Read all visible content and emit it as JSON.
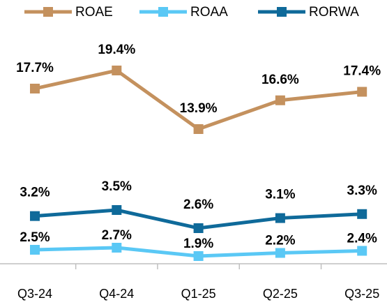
{
  "chart_data": {
    "type": "line",
    "categories": [
      "Q3-24",
      "Q4-24",
      "Q1-25",
      "Q2-25",
      "Q3-25"
    ],
    "series": [
      {
        "name": "ROAE",
        "color": "#c4915e",
        "values": [
          17.7,
          19.4,
          13.9,
          16.6,
          17.4
        ],
        "value_labels": [
          "17.7%",
          "19.4%",
          "13.9%",
          "16.6%",
          "17.4%"
        ]
      },
      {
        "name": "ROAA",
        "color": "#5ac8f5",
        "values": [
          2.5,
          2.7,
          1.9,
          2.2,
          2.4
        ],
        "value_labels": [
          "2.5%",
          "2.7%",
          "1.9%",
          "2.2%",
          "2.4%"
        ]
      },
      {
        "name": "RORWA",
        "color": "#0f6a9a",
        "values": [
          3.2,
          3.5,
          2.6,
          3.1,
          3.3
        ],
        "value_labels": [
          "3.2%",
          "3.5%",
          "2.6%",
          "3.1%",
          "3.3%"
        ]
      }
    ]
  }
}
